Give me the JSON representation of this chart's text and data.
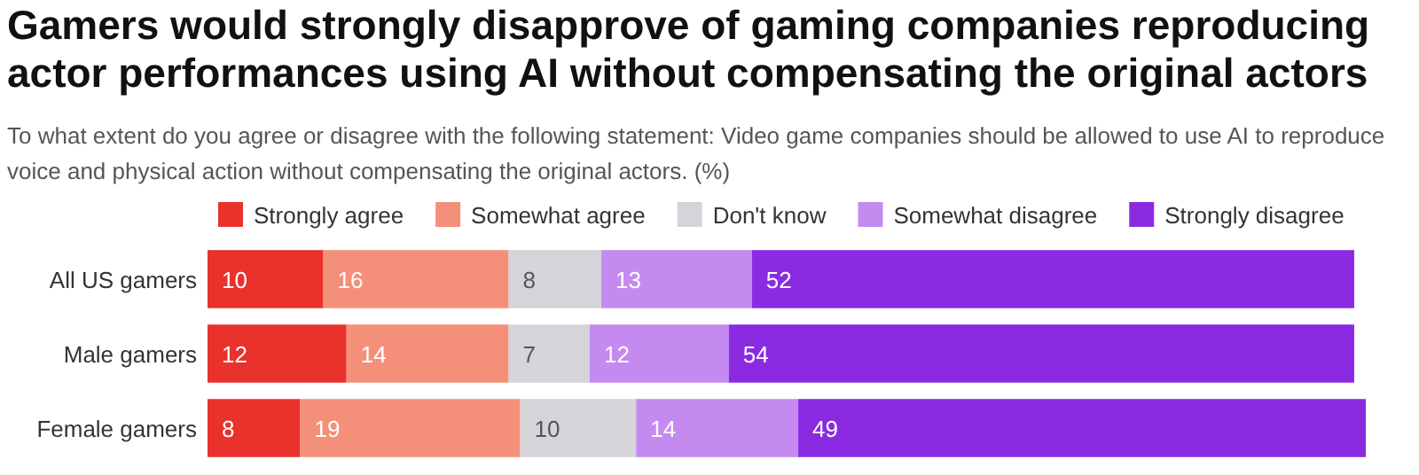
{
  "chart_data": {
    "type": "bar",
    "orientation": "horizontal",
    "stacked": true,
    "data_labels": true,
    "legend": "top left",
    "title": "Gamers would strongly disapprove of gaming companies reproducing actor performances using AI without compensating the original actors",
    "subtitle": "To what extent do you agree or disagree with the following statement: Video game companies should be allowed to use AI to reproduce voice and physical action without compensating the original actors. (%)",
    "categories": [
      "All US gamers",
      "Male gamers",
      "Female gamers"
    ],
    "series": [
      {
        "name": "Strongly agree",
        "color": "#e8322b",
        "values": [
          10,
          12,
          8
        ]
      },
      {
        "name": "Somewhat agree",
        "color": "#f4907a",
        "values": [
          16,
          14,
          19
        ]
      },
      {
        "name": "Don't know",
        "color": "#d4d4d9",
        "values": [
          8,
          7,
          10
        ]
      },
      {
        "name": "Somewhat disagree",
        "color": "#c58af0",
        "values": [
          13,
          12,
          14
        ]
      },
      {
        "name": "Strongly disagree",
        "color": "#8a2be2",
        "values": [
          52,
          54,
          49
        ]
      }
    ]
  }
}
